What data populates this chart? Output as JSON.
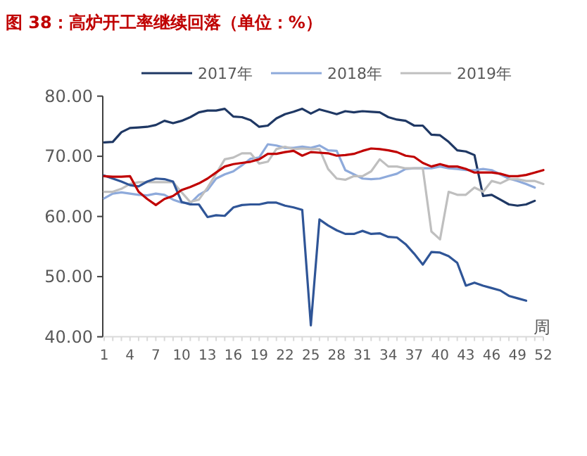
{
  "chart_data": {
    "type": "line",
    "title": "图 38：高炉开工率继续回落（单位：%）",
    "xlabel": "周",
    "categories": [
      "1",
      null,
      null,
      "4",
      null,
      null,
      "7",
      null,
      null,
      "10",
      null,
      null,
      "13",
      null,
      null,
      "16",
      null,
      null,
      "19",
      null,
      null,
      "22",
      null,
      null,
      "25",
      null,
      null,
      "28",
      null,
      null,
      "31",
      null,
      null,
      "34",
      null,
      null,
      "37",
      null,
      null,
      "40",
      null,
      null,
      "43",
      null,
      null,
      "46",
      null,
      null,
      "49",
      null,
      null,
      "52"
    ],
    "ylim": [
      40,
      80
    ],
    "yticks": [
      {
        "value": 40,
        "label": "40.00"
      },
      {
        "value": 50,
        "label": "50.00"
      },
      {
        "value": 60,
        "label": "60.00"
      },
      {
        "value": 70,
        "label": "70.00"
      },
      {
        "value": 80,
        "label": "80.00"
      }
    ],
    "legend": "top",
    "grid": false,
    "marker": "none",
    "line_style": "solid",
    "series": [
      {
        "name": "2017年",
        "color": "#1f3864",
        "values": [
          72.3,
          72.4,
          74.0,
          74.7,
          74.8,
          74.9,
          75.2,
          75.9,
          75.5,
          75.9,
          76.5,
          77.3,
          77.6,
          77.6,
          77.9,
          76.6,
          76.5,
          76.0,
          74.9,
          75.1,
          76.3,
          77.0,
          77.4,
          77.9,
          77.1,
          77.8,
          77.4,
          77.0,
          77.5,
          77.3,
          77.5,
          77.4,
          77.3,
          76.5,
          76.1,
          75.9,
          75.1,
          75.1,
          73.6,
          73.5,
          72.4,
          71.0,
          70.8,
          70.2,
          63.4,
          63.6,
          62.8,
          62.0,
          61.8,
          62.0,
          62.6,
          null
        ]
      },
      {
        "name": "2018年",
        "color": "#8eaadb",
        "values": [
          63.0,
          63.8,
          64.0,
          63.8,
          63.6,
          63.5,
          63.8,
          63.6,
          62.8,
          62.3,
          62.2,
          63.6,
          64.4,
          66.3,
          67.0,
          67.5,
          68.5,
          69.6,
          69.8,
          72.0,
          71.8,
          71.4,
          71.4,
          71.6,
          71.4,
          71.8,
          71.0,
          70.9,
          67.7,
          67.0,
          66.3,
          66.2,
          66.3,
          66.7,
          67.1,
          67.9,
          68.0,
          68.0,
          68.0,
          68.3,
          68.0,
          67.9,
          67.7,
          67.7,
          67.9,
          67.7,
          67.0,
          66.3,
          65.9,
          65.4,
          64.8,
          null
        ]
      },
      {
        "name": "2019年",
        "color": "#bfbfbf",
        "values": [
          64.1,
          64.1,
          64.6,
          65.4,
          65.7,
          65.7,
          65.7,
          65.7,
          65.7,
          64.0,
          62.4,
          62.8,
          64.8,
          67.1,
          69.5,
          69.8,
          70.5,
          70.5,
          68.8,
          69.1,
          71.2,
          71.6,
          71.2,
          71.3,
          71.2,
          71.2,
          67.9,
          66.3,
          66.1,
          66.7,
          66.7,
          67.5,
          69.5,
          68.3,
          68.3,
          68.0,
          68.0,
          68.0,
          57.5,
          56.2,
          64.1,
          63.6,
          63.6,
          64.8,
          64.1,
          65.9,
          65.5,
          66.2,
          66.2,
          65.9,
          65.9,
          65.4
        ]
      },
      {
        "color": "#2f5597",
        "values": [
          66.8,
          66.3,
          65.8,
          65.2,
          65.0,
          65.8,
          66.3,
          66.2,
          65.8,
          62.4,
          62.0,
          62.0,
          59.9,
          60.2,
          60.1,
          61.5,
          61.9,
          62.0,
          62.0,
          62.3,
          62.3,
          61.8,
          61.5,
          61.1,
          41.9,
          59.5,
          58.5,
          57.7,
          57.1,
          57.1,
          57.6,
          57.1,
          57.2,
          56.6,
          56.5,
          55.4,
          53.8,
          52.0,
          54.1,
          54.0,
          53.4,
          52.3,
          48.5,
          49.0,
          48.5,
          48.1,
          47.7,
          46.8,
          46.4,
          46.0,
          null,
          null
        ]
      },
      {
        "color": "#c00000",
        "values": [
          66.7,
          66.6,
          66.6,
          66.7,
          64.1,
          62.9,
          61.9,
          62.9,
          63.4,
          64.4,
          64.9,
          65.5,
          66.3,
          67.3,
          68.3,
          68.7,
          68.9,
          69.1,
          69.5,
          70.4,
          70.4,
          70.7,
          70.9,
          70.1,
          70.7,
          70.6,
          70.5,
          70.1,
          70.2,
          70.4,
          70.9,
          71.3,
          71.2,
          71.0,
          70.7,
          70.1,
          69.9,
          68.9,
          68.3,
          68.7,
          68.3,
          68.3,
          67.9,
          67.3,
          67.3,
          67.3,
          67.1,
          66.7,
          66.7,
          66.9,
          67.3,
          67.7
        ]
      }
    ]
  }
}
